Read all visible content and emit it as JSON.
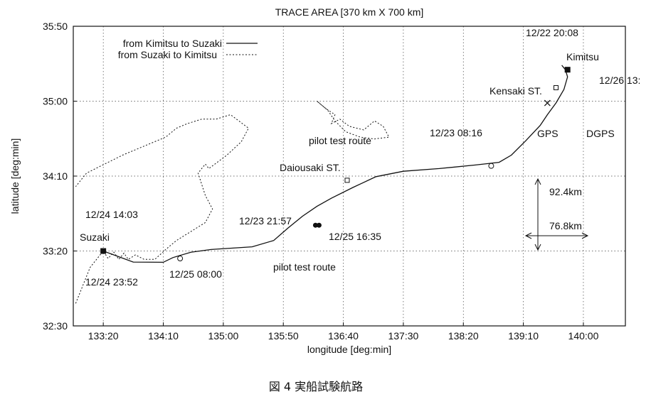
{
  "chart_data": {
    "type": "line",
    "title": "TRACE AREA [370 km X 700 km]",
    "xlabel": "longitude [deg:min]",
    "ylabel": "latitude [deg:min]",
    "x_ticks": [
      {
        "value": 133.3333,
        "label": "133:20"
      },
      {
        "value": 134.1667,
        "label": "134:10"
      },
      {
        "value": 135.0,
        "label": "135:00"
      },
      {
        "value": 135.8333,
        "label": "135:50"
      },
      {
        "value": 136.6667,
        "label": "136:40"
      },
      {
        "value": 137.5,
        "label": "137:30"
      },
      {
        "value": 138.3333,
        "label": "138:20"
      },
      {
        "value": 139.1667,
        "label": "139:10"
      },
      {
        "value": 140.0,
        "label": "140:00"
      }
    ],
    "y_ticks": [
      {
        "value": 32.5,
        "label": "32:30"
      },
      {
        "value": 33.3333,
        "label": "33:20"
      },
      {
        "value": 34.1667,
        "label": "34:10"
      },
      {
        "value": 35.0,
        "label": "35:00"
      },
      {
        "value": 35.8333,
        "label": "35:50"
      }
    ],
    "xlim": [
      132.9167,
      140.5833
    ],
    "ylim": [
      32.5,
      35.8333
    ],
    "grid": true,
    "legend_position": "top-left",
    "series": [
      {
        "name": "from Kimitsu to Suzaki",
        "style": "solid",
        "x": [
          133.333,
          133.75,
          134.166,
          134.3,
          134.55,
          134.83,
          135.4,
          135.7,
          135.9,
          136.1,
          136.3,
          136.5,
          136.8,
          137.12,
          137.5,
          138.0,
          138.5,
          138.83,
          139.0,
          139.2,
          139.4,
          139.5,
          139.62,
          139.73,
          139.78,
          139.75,
          139.7
        ],
        "y": [
          33.333,
          33.21,
          33.208,
          33.26,
          33.32,
          33.35,
          33.38,
          33.45,
          33.59,
          33.72,
          33.83,
          33.92,
          34.04,
          34.16,
          34.22,
          34.25,
          34.29,
          34.32,
          34.4,
          34.56,
          34.73,
          34.85,
          34.98,
          35.13,
          35.27,
          35.35,
          35.4
        ]
      },
      {
        "name": "from Suzaki to Kimitsu",
        "style": "dotted",
        "x": [
          132.95,
          133.05,
          133.15,
          133.333,
          133.4,
          133.48,
          133.55,
          133.62,
          133.68,
          133.78,
          133.9,
          134.05,
          134.2,
          134.35,
          134.55,
          134.75,
          134.85,
          134.75,
          134.65,
          134.75,
          134.8,
          135.05,
          135.25,
          135.35,
          135.1,
          134.9,
          134.7,
          134.5,
          134.35,
          134.2,
          133.9,
          133.6,
          133.35,
          133.1,
          132.95
        ],
        "y": [
          32.75,
          32.95,
          33.15,
          33.333,
          33.25,
          33.32,
          33.24,
          33.31,
          33.24,
          33.29,
          33.24,
          33.24,
          33.35,
          33.45,
          33.55,
          33.65,
          33.8,
          33.95,
          34.2,
          34.3,
          34.25,
          34.4,
          34.55,
          34.7,
          34.85,
          34.8,
          34.8,
          34.75,
          34.7,
          34.6,
          34.5,
          34.4,
          34.3,
          34.2,
          34.05
        ]
      },
      {
        "name": "pilot test route",
        "style": "dotted",
        "x": [
          136.3,
          136.42,
          136.55,
          136.5,
          136.62,
          136.75,
          136.95,
          137.1,
          137.22,
          137.3,
          137.1,
          136.9,
          136.7,
          136.55,
          136.45,
          136.3
        ],
        "y": [
          35.0,
          34.92,
          34.85,
          34.75,
          34.8,
          34.72,
          34.68,
          34.78,
          34.72,
          34.6,
          34.58,
          34.6,
          34.66,
          34.78,
          34.9,
          35.0
        ]
      }
    ],
    "annotations": [
      {
        "text": "Suzaki",
        "x": 133.333,
        "y": 33.333,
        "marker": "filled-square"
      },
      {
        "text": "Kimitsu",
        "x": 139.78,
        "y": 35.35,
        "marker": "filled-square"
      },
      {
        "text": "Kensaki ST.",
        "x": 139.62,
        "y": 35.15,
        "marker": "open-square"
      },
      {
        "text": "Daiousaki ST.",
        "x": 136.72,
        "y": 34.12,
        "marker": "open-square"
      },
      {
        "text": "12/22 20:08"
      },
      {
        "text": "12/26 13:"
      },
      {
        "text": "12/23 08:16",
        "x": 138.72,
        "y": 34.28,
        "marker": "open-circle"
      },
      {
        "text": "12/23 21:57"
      },
      {
        "text": "12/25 16:35",
        "x": 136.28,
        "y": 33.62,
        "marker": "filled-circle"
      },
      {
        "text": "12/24 14:03"
      },
      {
        "text": "12/24 23:52"
      },
      {
        "text": "12/25 08:00",
        "x": 134.4,
        "y": 33.25,
        "marker": "open-circle"
      },
      {
        "text": "pilot test route"
      },
      {
        "text": "pilot test route"
      },
      {
        "text": "GPS",
        "x": 139.5,
        "y": 34.98,
        "marker": "cross"
      },
      {
        "text": "DGPS"
      },
      {
        "text": "92.4km"
      },
      {
        "text": "76.8km"
      }
    ]
  },
  "caption": "図 4 実船試験航路"
}
